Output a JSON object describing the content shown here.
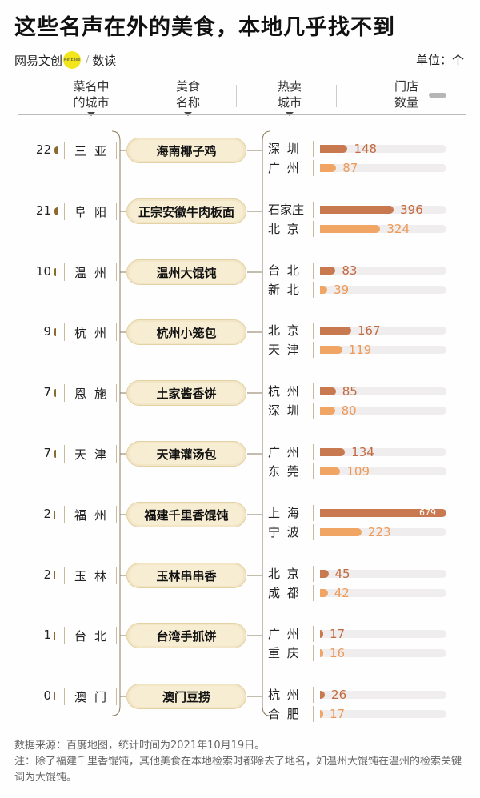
{
  "title": "这些名声在外的美食，本地几乎找不到",
  "brand": {
    "name": "网易文创",
    "logo_text": "NetEase",
    "slash": "/",
    "column": "数读"
  },
  "unit": "单位：个",
  "headers": {
    "count_city": [
      "菜名中",
      "的城市"
    ],
    "dish": [
      "美食",
      "名称"
    ],
    "hot_city": [
      "热卖",
      "城市"
    ],
    "stores": [
      "门店",
      "数量"
    ]
  },
  "colors": {
    "bar_first": "#c9794f",
    "bar_second": "#f0a565",
    "track": "#efedee",
    "pill": "#f2e6c6",
    "bracket": "#8a6a2e"
  },
  "rows": [
    {
      "count": "22",
      "city": "三亚",
      "dish": "海南椰子鸡",
      "hot": [
        {
          "city": "深圳",
          "value": 148
        },
        {
          "city": "广州",
          "value": 87
        }
      ]
    },
    {
      "count": "21",
      "city": "阜阳",
      "dish": "正宗安徽牛肉板面",
      "hot": [
        {
          "city": "石家庄",
          "value": 396
        },
        {
          "city": "北京",
          "value": 324
        }
      ]
    },
    {
      "count": "10",
      "city": "温州",
      "dish": "温州大馄饨",
      "hot": [
        {
          "city": "台北",
          "value": 83
        },
        {
          "city": "新北",
          "value": 39
        }
      ]
    },
    {
      "count": "9",
      "city": "杭州",
      "dish": "杭州小笼包",
      "hot": [
        {
          "city": "北京",
          "value": 167
        },
        {
          "city": "天津",
          "value": 119
        }
      ]
    },
    {
      "count": "7",
      "city": "恩施",
      "dish": "土家酱香饼",
      "hot": [
        {
          "city": "杭州",
          "value": 85
        },
        {
          "city": "深圳",
          "value": 80
        }
      ]
    },
    {
      "count": "7",
      "city": "天津",
      "dish": "天津灌汤包",
      "hot": [
        {
          "city": "广州",
          "value": 134
        },
        {
          "city": "东莞",
          "value": 109
        }
      ]
    },
    {
      "count": "2",
      "city": "福州",
      "dish": "福建千里香馄饨",
      "hot": [
        {
          "city": "上海",
          "value": 679
        },
        {
          "city": "宁波",
          "value": 223
        }
      ]
    },
    {
      "count": "2",
      "city": "玉林",
      "dish": "玉林串串香",
      "hot": [
        {
          "city": "北京",
          "value": 45
        },
        {
          "city": "成都",
          "value": 42
        }
      ]
    },
    {
      "count": "1",
      "city": "台北",
      "dish": "台湾手抓饼",
      "hot": [
        {
          "city": "广州",
          "value": 17
        },
        {
          "city": "重庆",
          "value": 16
        }
      ]
    },
    {
      "count": "0",
      "city": "澳门",
      "dish": "澳门豆捞",
      "hot": [
        {
          "city": "杭州",
          "value": 26
        },
        {
          "city": "合肥",
          "value": 17
        }
      ]
    }
  ],
  "chart_data": {
    "type": "bar",
    "title": "这些名声在外的美食，本地几乎找不到",
    "unit": "个",
    "xlim": [
      0,
      679
    ],
    "categories": [
      "海南椰子鸡",
      "正宗安徽牛肉板面",
      "温州大馄饨",
      "杭州小笼包",
      "土家酱香饼",
      "天津灌汤包",
      "福建千里香馄饨",
      "玉林串串香",
      "台湾手抓饼",
      "澳门豆捞"
    ],
    "series": [
      {
        "values": [
          148,
          396,
          83,
          167,
          85,
          134,
          679,
          45,
          17,
          26
        ]
      },
      {
        "values": [
          87,
          324,
          39,
          119,
          80,
          109,
          223,
          42,
          16,
          17
        ]
      }
    ]
  },
  "footer": {
    "source": "数据来源：百度地图，统计时间为2021年10月19日。",
    "note": "注：除了福建千里香馄饨，其他美食在本地检索时都除去了地名，如温州大馄饨在温州的检索关键词为大馄饨。"
  }
}
